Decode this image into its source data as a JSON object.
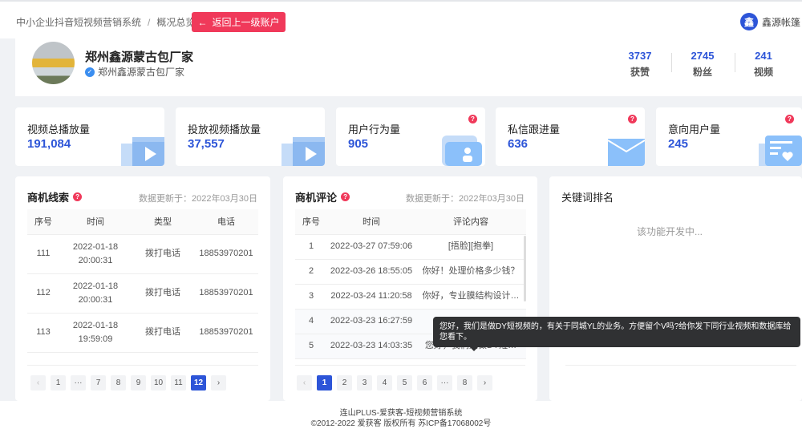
{
  "header": {
    "breadcrumb": [
      "中小企业抖音短视频营销系统",
      "概况总览"
    ],
    "back_button": "返回上一级账户",
    "user_avatar": "鑫",
    "user_name": "鑫源帐篷"
  },
  "profile": {
    "name": "郑州鑫源蒙古包厂家",
    "verified_name": "郑州鑫源蒙古包厂家",
    "stats": [
      {
        "value": "3737",
        "label": "获赞"
      },
      {
        "value": "2745",
        "label": "粉丝"
      },
      {
        "value": "241",
        "label": "视频"
      }
    ]
  },
  "cards": [
    {
      "title": "视频总播放量",
      "value": "191,084",
      "icon": "video-clapper-icon",
      "help": false
    },
    {
      "title": "投放视频播放量",
      "value": "37,557",
      "icon": "video-clapper-icon",
      "help": false
    },
    {
      "title": "用户行为量",
      "value": "905",
      "icon": "user-folder-icon",
      "help": true
    },
    {
      "title": "私信跟进量",
      "value": "636",
      "icon": "envelope-icon",
      "help": true
    },
    {
      "title": "意向用户量",
      "value": "245",
      "icon": "heart-list-icon",
      "help": true
    }
  ],
  "leads": {
    "title": "商机线索",
    "updated": "数据更新于：2022年03月30日",
    "columns": [
      "序号",
      "时间",
      "类型",
      "电话"
    ],
    "rows": [
      [
        "111",
        "2022-01-18 20:00:31",
        "拨打电话",
        "18853970201"
      ],
      [
        "112",
        "2022-01-18 20:00:31",
        "拨打电话",
        "18853970201"
      ],
      [
        "113",
        "2022-01-18 19:59:09",
        "拨打电话",
        "18853970201"
      ]
    ],
    "pages": [
      "‹",
      "1",
      "···",
      "7",
      "8",
      "9",
      "10",
      "11",
      "12",
      "›"
    ],
    "current_page": "12"
  },
  "comments": {
    "title": "商机评论",
    "updated": "数据更新于：2022年03月30日",
    "columns": [
      "序号",
      "时间",
      "评论内容"
    ],
    "rows": [
      [
        "1",
        "2022-03-27 07:59:06",
        "[捂脸][抱拳]"
      ],
      [
        "2",
        "2022-03-26 18:55:05",
        "你好！处理价格多少钱？"
      ],
      [
        "3",
        "2022-03-24 11:20:58",
        "你好，专业膜结构设计…"
      ],
      [
        "4",
        "2022-03-23 16:27:59",
        ""
      ],
      [
        "5",
        "2022-03-23 14:03:35",
        "您好，我们是做DY短…"
      ]
    ],
    "pages": [
      "‹",
      "1",
      "2",
      "3",
      "4",
      "5",
      "6",
      "···",
      "8",
      "›"
    ],
    "current_page": "1",
    "tooltip": "您好，我们是做DY短视频的，有关于同城YL的业务。方便留个V吗?给你发下同行业视频和数据库给您看下。"
  },
  "keywords": {
    "title": "关键词排名",
    "message": "该功能开发中..."
  },
  "footer": {
    "line1": "连山PLUS-爱获客-短视频营销系统",
    "line2": "©2012-2022 爱获客 版权所有 苏ICP备17068002号"
  },
  "colors": {
    "accent": "#2d55d8",
    "danger": "#f0395a"
  }
}
